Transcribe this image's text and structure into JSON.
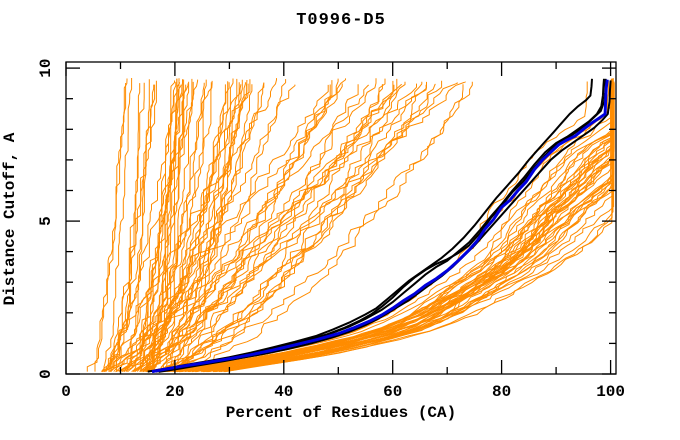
{
  "chart_data": {
    "type": "line",
    "title": "T0996-D5",
    "xlabel": "Percent of Residues (CA)",
    "ylabel": "Distance Cutoff, A",
    "xlim": [
      0,
      101
    ],
    "ylim": [
      0,
      10.2
    ],
    "grid": false,
    "frame": "box-with-inward-ticks",
    "legend": "none",
    "x_ticks": {
      "major": [
        0,
        20,
        40,
        60,
        80,
        100
      ],
      "minor": [
        10,
        30,
        50,
        70,
        90
      ],
      "labels": [
        "0",
        "20",
        "40",
        "60",
        "80",
        "100"
      ]
    },
    "y_ticks": {
      "major": [
        0,
        5,
        10
      ],
      "minor": [
        1,
        2,
        3,
        4,
        6,
        7,
        8,
        9
      ],
      "labels": [
        "0",
        "5",
        "10"
      ]
    },
    "colors": {
      "ensemble": "#FF8C00",
      "highlight": "#000000",
      "best": "#0000DD",
      "axis": "#000000"
    },
    "series": [
      {
        "id": "blue_best_curve",
        "color": "#0000DD",
        "stroke_width": 3,
        "points": [
          [
            15.8,
            0.08
          ],
          [
            18,
            0.15
          ],
          [
            22,
            0.27
          ],
          [
            26,
            0.38
          ],
          [
            30,
            0.5
          ],
          [
            34,
            0.63
          ],
          [
            38,
            0.78
          ],
          [
            42,
            0.95
          ],
          [
            46,
            1.12
          ],
          [
            50,
            1.32
          ],
          [
            53,
            1.52
          ],
          [
            56,
            1.75
          ],
          [
            58,
            1.93
          ],
          [
            60,
            2.15
          ],
          [
            62,
            2.4
          ],
          [
            64,
            2.62
          ],
          [
            66,
            2.9
          ],
          [
            68,
            3.12
          ],
          [
            70,
            3.38
          ],
          [
            72,
            3.7
          ],
          [
            74,
            4.05
          ],
          [
            75.5,
            4.35
          ],
          [
            77,
            4.75
          ],
          [
            78.5,
            5.05
          ],
          [
            80,
            5.45
          ],
          [
            81.5,
            5.68
          ],
          [
            83,
            6.0
          ],
          [
            84.5,
            6.28
          ],
          [
            86,
            6.68
          ],
          [
            87.5,
            7.0
          ],
          [
            89,
            7.25
          ],
          [
            90.5,
            7.5
          ],
          [
            92,
            7.65
          ],
          [
            93.5,
            7.78
          ],
          [
            95,
            8.0
          ],
          [
            96.5,
            8.2
          ],
          [
            98,
            8.38
          ],
          [
            99,
            8.5
          ],
          [
            99.1,
            9.0
          ],
          [
            99.2,
            9.35
          ],
          [
            99.4,
            9.62
          ]
        ]
      },
      {
        "id": "black_curve_1",
        "color": "#000000",
        "stroke_width": 2,
        "points": [
          [
            15,
            0.08
          ],
          [
            18,
            0.17
          ],
          [
            22,
            0.3
          ],
          [
            26,
            0.42
          ],
          [
            30,
            0.55
          ],
          [
            34,
            0.7
          ],
          [
            38,
            0.87
          ],
          [
            42,
            1.05
          ],
          [
            46,
            1.25
          ],
          [
            49,
            1.45
          ],
          [
            52,
            1.68
          ],
          [
            55,
            1.95
          ],
          [
            57,
            2.15
          ],
          [
            59,
            2.45
          ],
          [
            61,
            2.75
          ],
          [
            63,
            3.05
          ],
          [
            65,
            3.3
          ],
          [
            67,
            3.55
          ],
          [
            69,
            3.8
          ],
          [
            71,
            4.1
          ],
          [
            73,
            4.45
          ],
          [
            75,
            4.85
          ],
          [
            77,
            5.3
          ],
          [
            79,
            5.75
          ],
          [
            81,
            6.15
          ],
          [
            83,
            6.55
          ],
          [
            85,
            7.0
          ],
          [
            86.5,
            7.3
          ],
          [
            88,
            7.6
          ],
          [
            89.5,
            7.9
          ],
          [
            91,
            8.2
          ],
          [
            92.5,
            8.5
          ],
          [
            94,
            8.75
          ],
          [
            95.5,
            8.95
          ],
          [
            96.3,
            9.1
          ],
          [
            96.5,
            9.4
          ],
          [
            96.6,
            9.65
          ]
        ]
      },
      {
        "id": "black_curve_2",
        "color": "#000000",
        "stroke_width": 2,
        "points": [
          [
            16.5,
            0.08
          ],
          [
            20,
            0.2
          ],
          [
            24,
            0.32
          ],
          [
            28,
            0.45
          ],
          [
            32,
            0.6
          ],
          [
            36,
            0.75
          ],
          [
            40,
            0.92
          ],
          [
            44,
            1.1
          ],
          [
            48,
            1.3
          ],
          [
            51,
            1.5
          ],
          [
            54,
            1.75
          ],
          [
            56,
            1.95
          ],
          [
            58,
            2.2
          ],
          [
            60,
            2.5
          ],
          [
            62,
            2.85
          ],
          [
            64,
            3.15
          ],
          [
            66,
            3.4
          ],
          [
            68,
            3.6
          ],
          [
            70,
            3.75
          ],
          [
            72,
            3.95
          ],
          [
            74,
            4.2
          ],
          [
            76,
            4.6
          ],
          [
            78,
            5.1
          ],
          [
            80,
            5.5
          ],
          [
            82,
            5.95
          ],
          [
            84,
            6.3
          ],
          [
            86,
            6.75
          ],
          [
            88,
            7.15
          ],
          [
            90,
            7.5
          ],
          [
            92,
            7.7
          ],
          [
            94,
            7.95
          ],
          [
            95.5,
            8.15
          ],
          [
            97,
            8.4
          ],
          [
            98.2,
            8.6
          ],
          [
            98.8,
            8.9
          ],
          [
            99,
            9.2
          ],
          [
            99.1,
            9.65
          ]
        ]
      },
      {
        "id": "black_curve_3",
        "color": "#000000",
        "stroke_width": 2,
        "points": [
          [
            17,
            0.07
          ],
          [
            21,
            0.18
          ],
          [
            25,
            0.3
          ],
          [
            29,
            0.42
          ],
          [
            33,
            0.55
          ],
          [
            37,
            0.68
          ],
          [
            41,
            0.83
          ],
          [
            45,
            1.0
          ],
          [
            49,
            1.2
          ],
          [
            52,
            1.38
          ],
          [
            55,
            1.6
          ],
          [
            57,
            1.78
          ],
          [
            59,
            1.98
          ],
          [
            61,
            2.2
          ],
          [
            63,
            2.42
          ],
          [
            65,
            2.68
          ],
          [
            67,
            2.95
          ],
          [
            69,
            3.2
          ],
          [
            71,
            3.5
          ],
          [
            73,
            3.85
          ],
          [
            75,
            4.2
          ],
          [
            77,
            4.6
          ],
          [
            79,
            5.0
          ],
          [
            81,
            5.4
          ],
          [
            83,
            5.8
          ],
          [
            85,
            6.2
          ],
          [
            87,
            6.6
          ],
          [
            89,
            7.0
          ],
          [
            91,
            7.3
          ],
          [
            93,
            7.55
          ],
          [
            95,
            7.8
          ],
          [
            97,
            8.05
          ],
          [
            98.5,
            8.3
          ],
          [
            99.5,
            8.5
          ],
          [
            99.8,
            8.9
          ],
          [
            99.9,
            9.3
          ],
          [
            100,
            9.6
          ]
        ]
      },
      {
        "id": "black_curve_4",
        "color": "#000000",
        "stroke_width": 2,
        "points": [
          [
            16,
            0.08
          ],
          [
            20,
            0.19
          ],
          [
            24,
            0.31
          ],
          [
            28,
            0.44
          ],
          [
            32,
            0.58
          ],
          [
            36,
            0.73
          ],
          [
            40,
            0.9
          ],
          [
            44,
            1.08
          ],
          [
            48,
            1.28
          ],
          [
            52,
            1.55
          ],
          [
            55,
            1.8
          ],
          [
            58,
            2.1
          ],
          [
            60,
            2.35
          ],
          [
            62,
            2.65
          ],
          [
            64,
            2.95
          ],
          [
            66,
            3.25
          ],
          [
            68,
            3.5
          ],
          [
            70,
            3.7
          ],
          [
            72,
            4.0
          ],
          [
            74,
            4.3
          ],
          [
            76,
            4.7
          ],
          [
            78,
            5.15
          ],
          [
            80,
            5.55
          ],
          [
            82,
            6.0
          ],
          [
            84,
            6.4
          ],
          [
            86,
            6.85
          ],
          [
            88,
            7.25
          ],
          [
            90,
            7.55
          ],
          [
            92,
            7.75
          ],
          [
            94,
            8.0
          ],
          [
            96,
            8.25
          ],
          [
            97.5,
            8.5
          ],
          [
            98.3,
            8.75
          ],
          [
            98.6,
            9.1
          ],
          [
            98.7,
            9.45
          ],
          [
            98.8,
            9.65
          ]
        ]
      }
    ],
    "ensemble": {
      "id": "orange_prediction_curves",
      "color": "#FF8C00",
      "stroke_width": 1,
      "seed": 1337,
      "y_start": 0.08,
      "y_top_range": [
        9.45,
        9.68
      ],
      "x_clamp": [
        100.0,
        100.7
      ],
      "families": [
        {
          "name": "steep-left-fan",
          "count": 45,
          "x_start": [
            4,
            16
          ],
          "x_spread": [
            4,
            28
          ],
          "shape_exp": [
            0.35,
            0.9
          ],
          "jitter": 0.9
        },
        {
          "name": "middle-fan",
          "count": 28,
          "x_start": [
            6,
            20
          ],
          "x_spread": [
            28,
            62
          ],
          "shape_exp": [
            0.5,
            1.1
          ],
          "jitter": 1.2
        },
        {
          "name": "right-bundle",
          "count": 42,
          "follow": "blue_best_curve",
          "offset_start": [
            0.6,
            14
          ],
          "offset_growth": [
            -1.0,
            2.2
          ],
          "jitter": 0.55
        }
      ]
    }
  }
}
